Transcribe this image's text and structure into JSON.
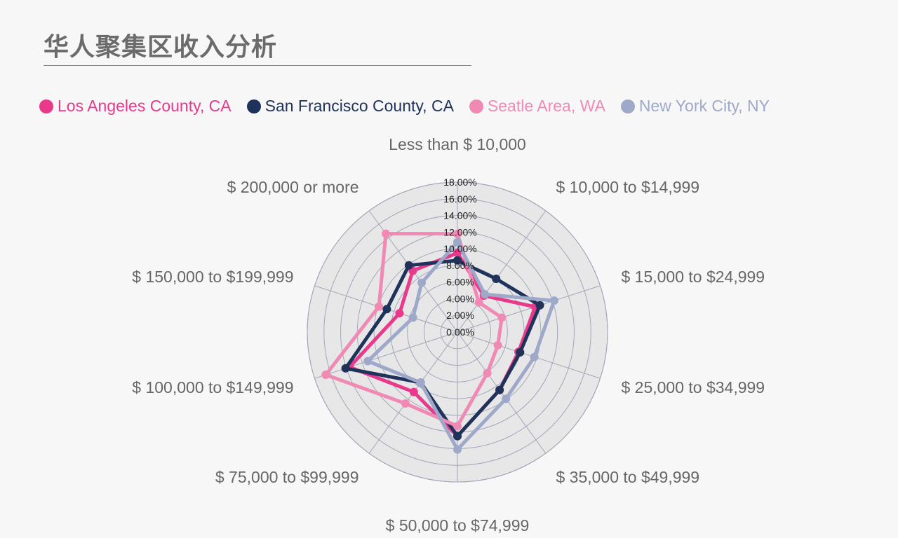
{
  "title": "华人聚集区收入分析",
  "chart_data": {
    "type": "radar",
    "title": "华人聚集区收入分析",
    "categories": [
      "Less than $ 10,000",
      "$ 10,000 to $14,999",
      "$ 15,000 to $24,999",
      "$ 25,000 to $34,999",
      "$ 35,000 to $49,999",
      "$ 50,000 to $74,999",
      "$ 75,000 to $99,999",
      "$ 100,000 to $149,999",
      "$ 150,000 to $199,999",
      "$ 200,000 or more"
    ],
    "series": [
      {
        "name": "Los Angeles County, CA",
        "color": "#e8398a",
        "values": [
          9.5,
          5.4,
          9.8,
          7.7,
          8.6,
          12.5,
          8.9,
          13.6,
          7.3,
          9.1
        ]
      },
      {
        "name": "San Francisco County, CA",
        "color": "#1f3259",
        "values": [
          8.6,
          7.9,
          10.4,
          7.9,
          8.6,
          12.5,
          7.5,
          14.1,
          8.9,
          9.9
        ]
      },
      {
        "name": "Seatle Area, WA",
        "color": "#f08ab4",
        "values": [
          11.8,
          4.4,
          5.6,
          5.1,
          6.1,
          11.3,
          10.6,
          16.6,
          9.9,
          14.6
        ]
      },
      {
        "name": "New York City, NY",
        "color": "#9ea9c9",
        "values": [
          10.8,
          5.6,
          12.2,
          9.7,
          9.9,
          14.1,
          7.5,
          11.3,
          5.6,
          7.3
        ]
      }
    ],
    "rlim": [
      0,
      18
    ],
    "ticks": [
      "0.00%",
      "2.00%",
      "4.00%",
      "6.00%",
      "8.00%",
      "10.00%",
      "12.00%",
      "14.00%",
      "16.00%",
      "18.00%"
    ],
    "grid": true,
    "legend_position": "top"
  }
}
